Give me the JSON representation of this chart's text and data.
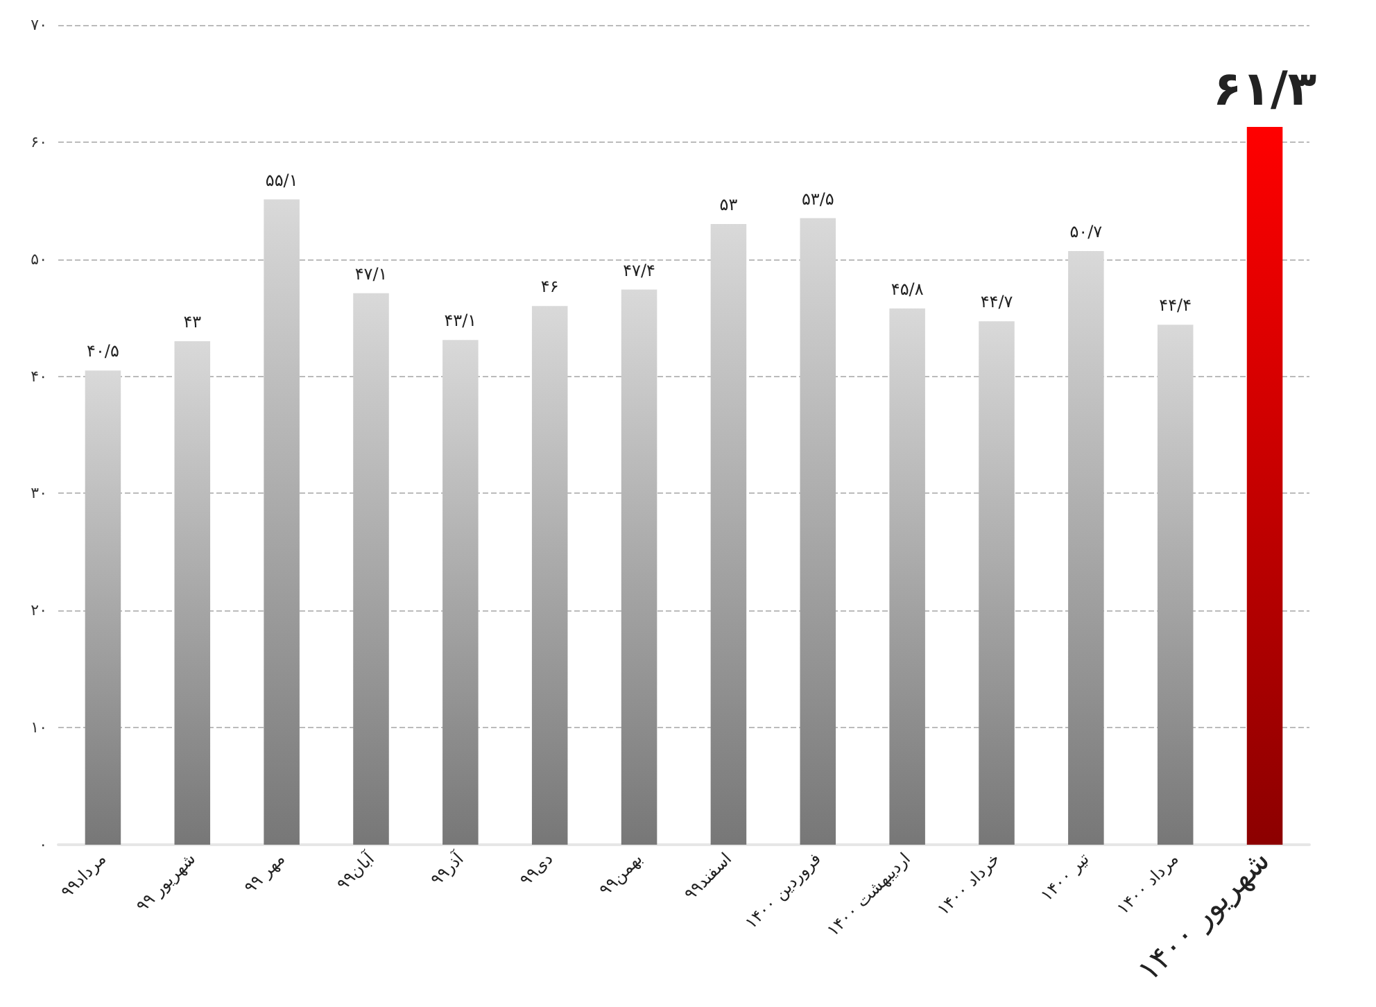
{
  "chart_data": {
    "type": "bar",
    "categories": [
      "مرداد۹۹",
      "شهریور ۹۹",
      "مهر ۹۹",
      "آبان۹۹",
      "آذر۹۹",
      "دی۹۹",
      "بهمن۹۹",
      "اسفند۹۹",
      "فروردین ۱۴۰۰",
      "اردیبهشت ۱۴۰۰",
      "خرداد ۱۴۰۰",
      "تیر ۱۴۰۰",
      "مرداد ۱۴۰۰",
      "شهریور ۱۴۰۰"
    ],
    "values": [
      40.5,
      43,
      55.1,
      47.1,
      43.1,
      46,
      47.4,
      53,
      53.5,
      45.8,
      44.7,
      50.7,
      44.4,
      61.3
    ],
    "value_labels": [
      "۴۰/۵",
      "۴۳",
      "۵۵/۱",
      "۴۷/۱",
      "۴۳/۱",
      "۴۶",
      "۴۷/۴",
      "۵۳",
      "۵۳/۵",
      "۴۵/۸",
      "۴۴/۷",
      "۵۰/۷",
      "۴۴/۴",
      "۶۱/۳"
    ],
    "colors": [
      "#d9d9d9",
      "#d9d9d9",
      "#d9d9d9",
      "#d9d9d9",
      "#d9d9d9",
      "#d9d9d9",
      "#d9d9d9",
      "#d9d9d9",
      "#d9d9d9",
      "#d9d9d9",
      "#d9d9d9",
      "#d9d9d9",
      "#d9d9d9",
      "#ff0000"
    ],
    "ylim": [
      0,
      70
    ],
    "yticks": [
      {
        "value": 0,
        "label": "۰"
      },
      {
        "value": 10,
        "label": "۱۰"
      },
      {
        "value": 20,
        "label": "۲۰"
      },
      {
        "value": 30,
        "label": "۳۰"
      },
      {
        "value": 40,
        "label": "۴۰"
      },
      {
        "value": 50,
        "label": "۵۰"
      },
      {
        "value": 60,
        "label": "۶۰"
      },
      {
        "value": 70,
        "label": "۷۰"
      }
    ],
    "grid": "y"
  }
}
